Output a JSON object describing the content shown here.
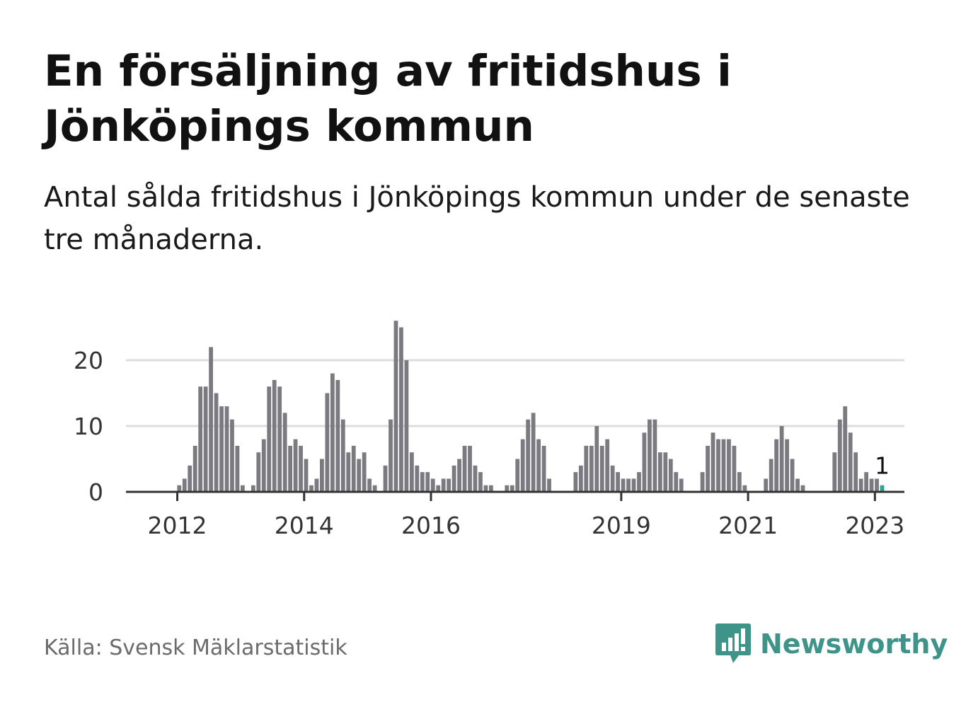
{
  "header": {
    "title": "En försäljning av fritidshus i Jönköpings kommun",
    "subtitle": "Antal sålda fritidshus i Jönköpings kommun under de senaste tre månaderna."
  },
  "footer": {
    "source": "Källa: Svensk Mäklarstatistik",
    "brand": "Newsworthy",
    "brand_icon": "newsworthy-logo-icon"
  },
  "colors": {
    "bar": "#7a7a80",
    "highlight": "#2fa58e",
    "brand": "#3e9488",
    "grid": "#dddddd",
    "axis": "#333333"
  },
  "chart_data": {
    "type": "bar",
    "title": "",
    "xlabel": "",
    "ylabel": "",
    "ylim": [
      0,
      27
    ],
    "y_ticks": [
      0,
      10,
      20
    ],
    "x_ticks": [
      "2012",
      "2014",
      "2016",
      "2019",
      "2021",
      "2023"
    ],
    "grid": true,
    "start": "2011-06",
    "frequency": "monthly",
    "values": [
      0,
      0,
      0,
      0,
      0,
      0,
      0,
      1,
      2,
      4,
      7,
      16,
      16,
      22,
      15,
      13,
      13,
      11,
      7,
      1,
      0,
      1,
      6,
      8,
      16,
      17,
      16,
      12,
      7,
      8,
      7,
      5,
      1,
      2,
      5,
      15,
      18,
      17,
      11,
      6,
      7,
      5,
      6,
      2,
      1,
      0,
      4,
      11,
      26,
      25,
      20,
      6,
      4,
      3,
      3,
      2,
      1,
      2,
      2,
      4,
      5,
      7,
      7,
      4,
      3,
      1,
      1,
      0,
      0,
      1,
      1,
      5,
      8,
      11,
      12,
      8,
      7,
      2,
      0,
      0,
      0,
      0,
      3,
      4,
      7,
      7,
      10,
      7,
      8,
      4,
      3,
      2,
      2,
      2,
      3,
      9,
      11,
      11,
      6,
      6,
      5,
      3,
      2,
      0,
      0,
      0,
      3,
      7,
      9,
      8,
      8,
      8,
      7,
      3,
      1,
      0,
      0,
      0,
      2,
      5,
      8,
      10,
      8,
      5,
      2,
      1,
      0,
      0,
      0,
      0,
      0,
      6,
      11,
      13,
      9,
      6,
      2,
      3,
      2,
      2,
      1
    ],
    "highlight": {
      "label": "2023-02",
      "value": 1
    },
    "annotation": "1"
  }
}
